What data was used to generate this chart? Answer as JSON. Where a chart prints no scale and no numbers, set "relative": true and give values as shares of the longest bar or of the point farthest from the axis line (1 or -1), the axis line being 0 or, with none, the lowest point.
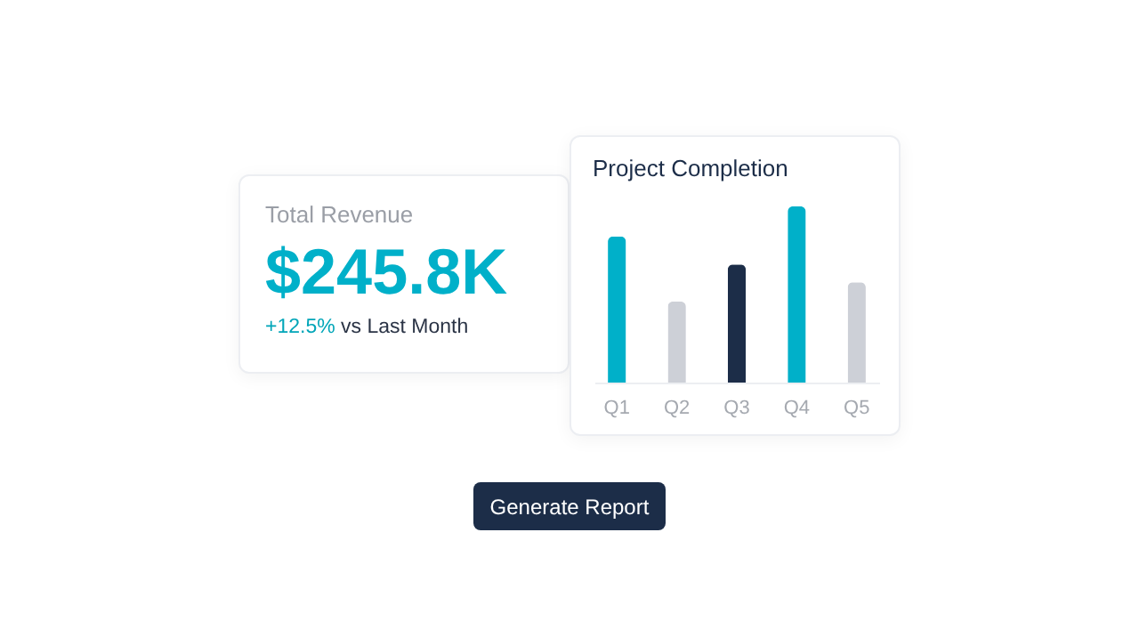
{
  "chart_data": [
    {
      "type": "other",
      "title": "Total Revenue",
      "annotations": [
        "$245.8K",
        "+12.5%",
        "vs Last Month"
      ]
    },
    {
      "type": "bar",
      "title": "Project Completion",
      "relative": true,
      "categories": [
        "Q1",
        "Q2",
        "Q3",
        "Q4",
        "Q5"
      ],
      "values": [
        0.83,
        0.46,
        0.67,
        1,
        0.57
      ],
      "colors": [
        "#00b0c9",
        "#cdd0d7",
        "#1c2d48",
        "#00b0c9",
        "#cdd0d7"
      ]
    },
    {
      "type": "other",
      "annotations": [
        "Generate Report"
      ]
    }
  ]
}
